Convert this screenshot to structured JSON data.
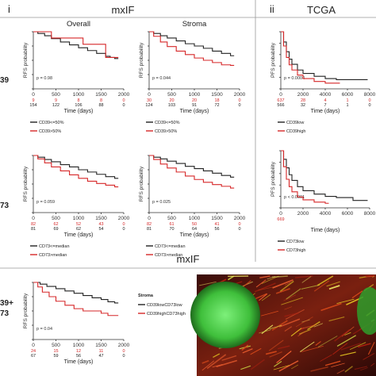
{
  "headers": {
    "panel_i": "i",
    "panel_i_title": "mxIF",
    "panel_ii": "ii",
    "panel_ii_title": "TCGA",
    "bottom_title": "mxIF"
  },
  "row_labels": [
    "39",
    "73",
    "39+",
    "73"
  ],
  "colors": {
    "low": "#222222",
    "high": "#d62728",
    "divider": "#999999"
  },
  "chart_data": [
    {
      "id": "cd39-overall",
      "type": "line",
      "title": "Overall",
      "xlabel": "Time (days)",
      "ylabel": "RFS probability",
      "xlim": [
        0,
        2000
      ],
      "ylim": [
        0,
        1
      ],
      "xticks": [
        "0",
        "500",
        "1000",
        "1500",
        "2000"
      ],
      "yticks": [
        "0.00",
        "0.25",
        "0.50",
        "0.75",
        "1.00"
      ],
      "pvalue": "p = 0.98",
      "risk_low": [
        "154",
        "122",
        "106",
        "88",
        "0"
      ],
      "risk_high": [
        "9",
        "9",
        "8",
        "8",
        "0"
      ],
      "legend": [
        "CD39<=50%",
        "CD39>50%"
      ],
      "series": [
        {
          "name": "CD39<=50%",
          "x": [
            0,
            100,
            250,
            400,
            600,
            800,
            1000,
            1200,
            1400,
            1600,
            1700,
            1800
          ],
          "y": [
            1.0,
            0.97,
            0.93,
            0.88,
            0.82,
            0.77,
            0.72,
            0.67,
            0.62,
            0.57,
            0.55,
            0.53
          ]
        },
        {
          "name": "CD39>50%",
          "x": [
            0,
            400,
            850,
            1100,
            1350,
            1600,
            1800
          ],
          "y": [
            1.0,
            0.89,
            0.89,
            0.78,
            0.78,
            0.55,
            0.55
          ]
        }
      ]
    },
    {
      "id": "cd39-stroma",
      "type": "line",
      "title": "Stroma",
      "xlabel": "Time (days)",
      "ylabel": "RFS probability",
      "xlim": [
        0,
        2000
      ],
      "ylim": [
        0,
        1
      ],
      "xticks": [
        "0",
        "500",
        "1000",
        "1500",
        "2000"
      ],
      "yticks": [
        "0.00",
        "0.25",
        "0.50",
        "0.75",
        "1.00"
      ],
      "pvalue": "p = 0.044",
      "risk_low": [
        "124",
        "103",
        "91",
        "72",
        "0"
      ],
      "risk_high": [
        "30",
        "20",
        "20",
        "18",
        "0"
      ],
      "legend": [
        "CD39<=50%",
        "CD39>50%"
      ],
      "series": [
        {
          "name": "CD39<=50%",
          "x": [
            0,
            100,
            250,
            400,
            600,
            800,
            1000,
            1200,
            1400,
            1600,
            1800
          ],
          "y": [
            1.0,
            0.97,
            0.93,
            0.89,
            0.84,
            0.79,
            0.75,
            0.71,
            0.66,
            0.62,
            0.58
          ]
        },
        {
          "name": "CD39>50%",
          "x": [
            0,
            100,
            250,
            400,
            600,
            800,
            1000,
            1200,
            1400,
            1600,
            1800
          ],
          "y": [
            1.0,
            0.92,
            0.82,
            0.74,
            0.66,
            0.6,
            0.54,
            0.5,
            0.46,
            0.42,
            0.41
          ]
        }
      ]
    },
    {
      "id": "cd39-tcga",
      "type": "line",
      "title": "",
      "xlabel": "Time (days)",
      "ylabel": "PFS probability",
      "xlim": [
        0,
        8000
      ],
      "ylim": [
        0,
        1
      ],
      "xticks": [
        "0",
        "2000",
        "4000",
        "6000",
        "8000"
      ],
      "yticks": [
        "0.0",
        "0.2",
        "0.4",
        "0.6",
        "0.8",
        "1.0"
      ],
      "pvalue": "p = 0.0004",
      "risk_low": [
        "566",
        "32",
        "7",
        "1",
        "0"
      ],
      "risk_high": [
        "637",
        "28",
        "4",
        "1",
        "0"
      ],
      "legend": [
        "CD39low",
        "CD39high"
      ],
      "series": [
        {
          "name": "CD39low",
          "x": [
            0,
            250,
            500,
            750,
            1000,
            1500,
            2000,
            3000,
            4000,
            5000,
            6500,
            7500
          ],
          "y": [
            1.0,
            0.82,
            0.65,
            0.52,
            0.43,
            0.33,
            0.27,
            0.22,
            0.18,
            0.16,
            0.16,
            0.16
          ]
        },
        {
          "name": "CD39high",
          "x": [
            0,
            250,
            500,
            750,
            1000,
            1500,
            2000,
            3000,
            4000,
            5000
          ],
          "y": [
            1.0,
            0.75,
            0.55,
            0.42,
            0.33,
            0.24,
            0.18,
            0.13,
            0.1,
            0.1
          ]
        }
      ]
    },
    {
      "id": "cd73-overall",
      "type": "line",
      "title": "",
      "xlabel": "Time (days)",
      "ylabel": "RFS probability",
      "xlim": [
        0,
        2000
      ],
      "ylim": [
        0,
        1
      ],
      "xticks": [
        "0",
        "500",
        "1000",
        "1500",
        "2000"
      ],
      "yticks": [
        "0.00",
        "0.25",
        "0.50",
        "0.75",
        "1.00"
      ],
      "pvalue": "p = 0.059",
      "risk_low": [
        "81",
        "69",
        "62",
        "54",
        "0"
      ],
      "risk_high": [
        "82",
        "62",
        "52",
        "43",
        "0"
      ],
      "legend": [
        "CD73<=median",
        "CD73>median"
      ],
      "series": [
        {
          "name": "CD73<=median",
          "x": [
            0,
            100,
            250,
            400,
            600,
            800,
            1000,
            1200,
            1400,
            1600,
            1800
          ],
          "y": [
            1.0,
            0.97,
            0.93,
            0.89,
            0.84,
            0.8,
            0.75,
            0.71,
            0.67,
            0.63,
            0.6
          ]
        },
        {
          "name": "CD73>median",
          "x": [
            0,
            100,
            250,
            400,
            600,
            800,
            1000,
            1200,
            1400,
            1600,
            1800
          ],
          "y": [
            1.0,
            0.94,
            0.87,
            0.8,
            0.73,
            0.66,
            0.6,
            0.55,
            0.51,
            0.48,
            0.45
          ]
        }
      ]
    },
    {
      "id": "cd73-stroma",
      "type": "line",
      "title": "",
      "xlabel": "Time (days)",
      "ylabel": "RFS probability",
      "xlim": [
        0,
        2000
      ],
      "ylim": [
        0,
        1
      ],
      "xticks": [
        "0",
        "500",
        "1000",
        "1500",
        "2000"
      ],
      "yticks": [
        "0.00",
        "0.25",
        "0.50",
        "0.75",
        "1.00"
      ],
      "pvalue": "p = 0.025",
      "risk_low": [
        "81",
        "70",
        "64",
        "56",
        "0"
      ],
      "risk_high": [
        "82",
        "61",
        "50",
        "41",
        "0"
      ],
      "legend": [
        "CD73<=median",
        "CD73>median"
      ],
      "series": [
        {
          "name": "CD73<=median",
          "x": [
            0,
            100,
            250,
            400,
            600,
            800,
            1000,
            1200,
            1400,
            1600,
            1800
          ],
          "y": [
            1.0,
            0.97,
            0.94,
            0.9,
            0.86,
            0.81,
            0.77,
            0.73,
            0.69,
            0.65,
            0.62
          ]
        },
        {
          "name": "CD73>median",
          "x": [
            0,
            100,
            250,
            400,
            600,
            800,
            1000,
            1200,
            1400,
            1600,
            1800
          ],
          "y": [
            1.0,
            0.93,
            0.85,
            0.78,
            0.71,
            0.64,
            0.58,
            0.53,
            0.49,
            0.46,
            0.43
          ]
        }
      ]
    },
    {
      "id": "cd73-tcga",
      "type": "line",
      "title": "",
      "xlabel": "Time (days)",
      "ylabel": "PFS probability",
      "xlim": [
        0,
        8000
      ],
      "ylim": [
        0,
        1
      ],
      "xticks": [
        "0",
        "2000",
        "4000",
        "6000",
        "8000"
      ],
      "yticks": [
        "0.0",
        "0.2",
        "0.4",
        "0.6",
        "0.8",
        "1.0"
      ],
      "pvalue": "p < 0.0001",
      "risk_low": [
        "",
        "",
        "",
        "",
        ""
      ],
      "risk_high": [
        "669",
        "",
        "",
        "",
        ""
      ],
      "legend": [
        "CD73low",
        "CD73high"
      ],
      "series": [
        {
          "name": "CD73low",
          "x": [
            0,
            250,
            500,
            750,
            1000,
            1500,
            2000,
            3000,
            4000,
            5000,
            6500,
            7500
          ],
          "y": [
            1.0,
            0.85,
            0.7,
            0.58,
            0.48,
            0.37,
            0.3,
            0.24,
            0.2,
            0.18,
            0.13,
            0.13
          ]
        },
        {
          "name": "CD73high",
          "x": [
            0,
            250,
            500,
            750,
            1000,
            1500,
            2000,
            3000,
            4000
          ],
          "y": [
            1.0,
            0.72,
            0.5,
            0.37,
            0.28,
            0.19,
            0.14,
            0.1,
            0.08
          ]
        }
      ]
    },
    {
      "id": "cd39cd73-stroma",
      "type": "line",
      "title": "",
      "xlabel": "Time (days)",
      "ylabel": "RFS probability",
      "xlim": [
        0,
        2000
      ],
      "ylim": [
        0,
        1
      ],
      "xticks": [
        "0",
        "500",
        "1000",
        "1500",
        "2000"
      ],
      "yticks": [
        "0.00",
        "0.25",
        "0.50",
        "0.75",
        "1.00"
      ],
      "pvalue": "p = 0.04",
      "risk_low": [
        "67",
        "59",
        "56",
        "47",
        "0"
      ],
      "risk_high": [
        "24",
        "15",
        "12",
        "11",
        "0"
      ],
      "legend_title": "Stroma",
      "legend": [
        "CD39lowCD73low",
        "CD39highCD73high"
      ],
      "series": [
        {
          "name": "CD39lowCD73low",
          "x": [
            0,
            150,
            300,
            500,
            700,
            900,
            1100,
            1300,
            1500,
            1650,
            1800
          ],
          "y": [
            1.0,
            0.97,
            0.93,
            0.89,
            0.85,
            0.81,
            0.77,
            0.73,
            0.7,
            0.66,
            0.64
          ]
        },
        {
          "name": "CD39highCD73high",
          "x": [
            0,
            100,
            200,
            350,
            500,
            700,
            900,
            1100,
            1300,
            1500,
            1650,
            1800
          ],
          "y": [
            1.0,
            0.92,
            0.83,
            0.75,
            0.67,
            0.6,
            0.54,
            0.5,
            0.5,
            0.46,
            0.42,
            0.42
          ]
        }
      ]
    }
  ]
}
